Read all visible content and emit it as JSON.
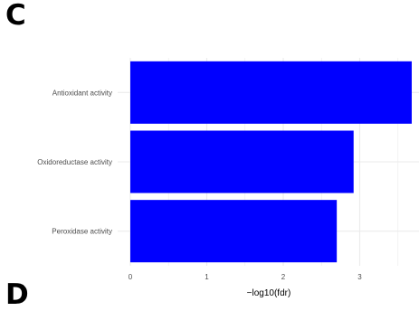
{
  "panel_labels": {
    "top": "C",
    "bottom": "D"
  },
  "chart_data": {
    "type": "bar",
    "orientation": "horizontal",
    "categories": [
      "Antioxidant activity",
      "Oxidoreductase activity",
      "Peroxidase activity"
    ],
    "values": [
      3.68,
      2.92,
      2.7
    ],
    "xlabel": "−log10(fdr)",
    "ylabel": "",
    "xlim": [
      0,
      3.7
    ],
    "xticks": [
      0,
      1,
      2,
      3
    ],
    "grid": true,
    "bar_color": "#0000ff",
    "grid_color": "#ebebeb"
  }
}
